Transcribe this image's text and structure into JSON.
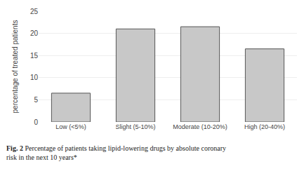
{
  "chart_data": {
    "type": "bar",
    "categories": [
      "Low (<5%)",
      "Slight (5-10%)",
      "Moderate (10-20%)",
      "High (20-40%)"
    ],
    "values": [
      6.5,
      21.0,
      21.5,
      16.5
    ],
    "color": "#c8c8c8",
    "ylabel": "percentage of treated patients",
    "ylim": [
      0,
      25
    ],
    "yticks": [
      0,
      5,
      10,
      15,
      20,
      25
    ],
    "grid": true,
    "annotations": [
      "Fig. 2",
      "Percentage of patients taking lipid-lowering drugs by absolute coronary risk in the next 10 years*"
    ]
  }
}
